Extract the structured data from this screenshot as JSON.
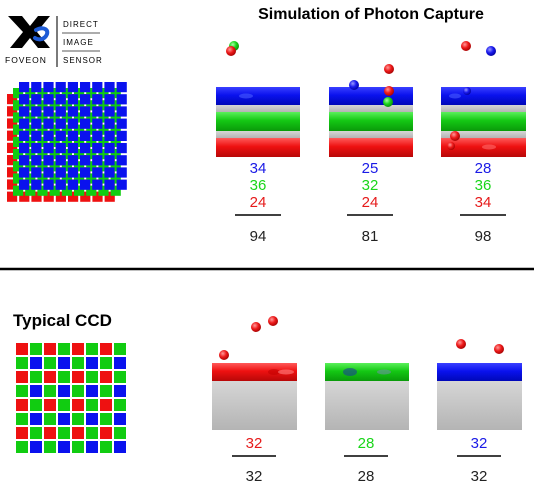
{
  "logo": {
    "brand": "FOVEON",
    "lines": [
      "DIRECT",
      "IMAGE",
      "SENSOR"
    ]
  },
  "top_section": {
    "title": "Simulation of Photon Capture",
    "sensor_description": "Layered X3 sensor: blue, green and red layers stacked in every pixel",
    "columns": [
      {
        "blue": "34",
        "green": "36",
        "red": "24",
        "total": "94"
      },
      {
        "blue": "25",
        "green": "32",
        "red": "24",
        "total": "81"
      },
      {
        "blue": "28",
        "green": "36",
        "red": "34",
        "total": "98"
      }
    ]
  },
  "bottom_section": {
    "title": "Typical CCD",
    "sensor_description": "Bayer mosaic: each pixel captures only one color",
    "columns": [
      {
        "value": "32",
        "color": "red",
        "total": "32"
      },
      {
        "value": "28",
        "color": "green",
        "total": "28"
      },
      {
        "value": "32",
        "color": "blue",
        "total": "32"
      }
    ]
  },
  "colors": {
    "blue": "#0a12ee",
    "green": "#11cc11",
    "red": "#ee1111",
    "gray": "#bfbfbf",
    "text_blue": "#1a1ae6",
    "text_green": "#19d619",
    "text_red": "#e61a1a"
  }
}
